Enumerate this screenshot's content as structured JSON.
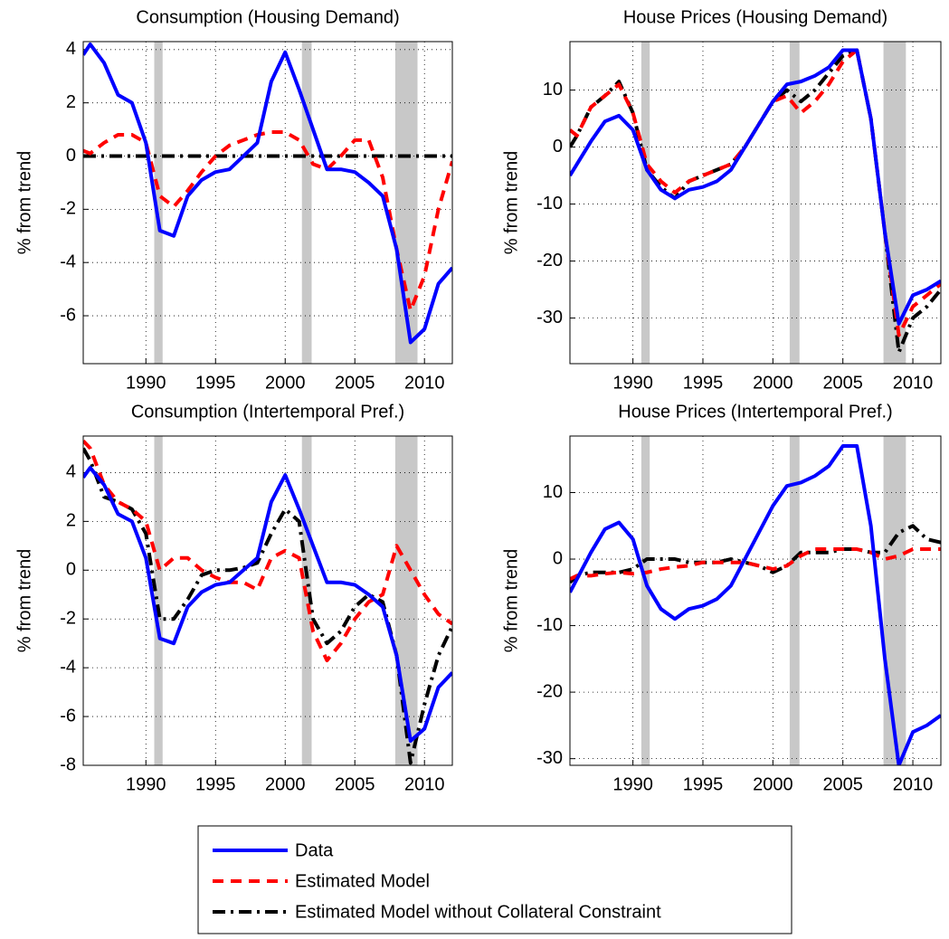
{
  "chart_data": [
    {
      "type": "line",
      "title": "Consumption (Housing Demand)",
      "ylabel": "% from trend",
      "x": [
        1985.5,
        1986,
        1987,
        1988,
        1989,
        1990,
        1991,
        1992,
        1993,
        1994,
        1995,
        1996,
        1997,
        1998,
        1999,
        2000,
        2001,
        2002,
        2003,
        2004,
        2005,
        2006,
        2007,
        2008,
        2009,
        2010,
        2011,
        2012
      ],
      "series": [
        {
          "name": "Data",
          "color": "#0000ff",
          "values": [
            3.8,
            4.2,
            3.5,
            2.3,
            2.0,
            0.5,
            -2.8,
            -3.0,
            -1.5,
            -0.9,
            -0.6,
            -0.5,
            0.0,
            0.5,
            2.8,
            3.9,
            2.5,
            1.0,
            -0.5,
            -0.5,
            -0.6,
            -1.0,
            -1.5,
            -3.5,
            -7.0,
            -6.5,
            -4.8,
            -4.2
          ]
        },
        {
          "name": "Estimated Model",
          "color": "#ff0000",
          "values": [
            0.2,
            0.1,
            0.5,
            0.8,
            0.8,
            0.5,
            -1.5,
            -1.9,
            -1.3,
            -0.6,
            0,
            0.4,
            0.6,
            0.8,
            0.9,
            0.9,
            0.6,
            -0.3,
            -0.5,
            0,
            0.6,
            0.6,
            -0.8,
            -3.5,
            -5.8,
            -4.5,
            -2.0,
            -0.2
          ]
        },
        {
          "name": "Estimated Model without Collateral Constraint",
          "color": "#000000",
          "values": [
            0,
            0,
            0,
            0,
            0,
            0,
            0,
            0,
            0,
            0,
            0,
            0,
            0,
            0,
            0,
            0,
            0,
            0,
            0,
            0,
            0,
            0,
            0,
            0,
            0,
            0,
            0,
            0
          ]
        }
      ],
      "recessions": [
        [
          1990.6,
          1991.2
        ],
        [
          2001.2,
          2001.9
        ],
        [
          2007.9,
          2009.5
        ]
      ],
      "xlim": [
        1985.5,
        2012
      ],
      "xticks": [
        1990,
        1995,
        2000,
        2005,
        2010
      ],
      "ylim": [
        -7.8,
        4.3
      ],
      "yticks": [
        -6,
        -4,
        -2,
        0,
        2,
        4
      ],
      "grid": true
    },
    {
      "type": "line",
      "title": "House Prices (Housing Demand)",
      "ylabel": "% from trend",
      "x": [
        1985.5,
        1986,
        1987,
        1988,
        1989,
        1990,
        1991,
        1992,
        1993,
        1994,
        1995,
        1996,
        1997,
        1998,
        1999,
        2000,
        2001,
        2002,
        2003,
        2004,
        2005,
        2006,
        2007,
        2008,
        2009,
        2010,
        2011,
        2012
      ],
      "series": [
        {
          "name": "Data",
          "color": "#0000ff",
          "values": [
            -5,
            -3,
            1,
            4.5,
            5.5,
            3,
            -4,
            -7.5,
            -9,
            -7.5,
            -7,
            -6,
            -4,
            0,
            4,
            8,
            11,
            11.5,
            12.5,
            14,
            17,
            17,
            5,
            -15,
            -31,
            -26,
            -25,
            -23.5
          ]
        },
        {
          "name": "Estimated Model",
          "color": "#ff0000",
          "values": [
            3,
            2,
            7,
            9,
            11,
            6,
            -3,
            -6,
            -8,
            -6,
            -5,
            -4,
            -3,
            0,
            4,
            8,
            9,
            6,
            8,
            11,
            15,
            17,
            5,
            -15,
            -33,
            -28,
            -26,
            -24
          ]
        },
        {
          "name": "Estimated Model without Collateral Constraint",
          "color": "#000000",
          "values": [
            0,
            2,
            7,
            9,
            11.5,
            6,
            -4,
            -7,
            -9,
            -6,
            -5,
            -4,
            -3,
            0,
            4,
            8,
            10,
            8,
            10,
            13,
            16,
            17,
            5,
            -15,
            -36,
            -30,
            -28,
            -25
          ]
        }
      ],
      "recessions": [
        [
          1990.6,
          1991.2
        ],
        [
          2001.2,
          2001.9
        ],
        [
          2007.9,
          2009.5
        ]
      ],
      "xlim": [
        1985.5,
        2012
      ],
      "xticks": [
        1990,
        1995,
        2000,
        2005,
        2010
      ],
      "ylim": [
        -38,
        18.5
      ],
      "yticks": [
        -30,
        -20,
        -10,
        0,
        10
      ],
      "grid": true
    },
    {
      "type": "line",
      "title": "Consumption (Intertemporal Pref.)",
      "ylabel": "% from trend",
      "x": [
        1985.5,
        1986,
        1987,
        1988,
        1989,
        1990,
        1991,
        1992,
        1993,
        1994,
        1995,
        1996,
        1997,
        1998,
        1999,
        2000,
        2001,
        2002,
        2003,
        2004,
        2005,
        2006,
        2007,
        2008,
        2009,
        2010,
        2011,
        2012
      ],
      "series": [
        {
          "name": "Data",
          "color": "#0000ff",
          "values": [
            3.8,
            4.2,
            3.5,
            2.3,
            2.0,
            0.5,
            -2.8,
            -3.0,
            -1.5,
            -0.9,
            -0.6,
            -0.5,
            0.0,
            0.5,
            2.8,
            3.9,
            2.5,
            1.0,
            -0.5,
            -0.5,
            -0.6,
            -1.0,
            -1.5,
            -3.5,
            -7.0,
            -6.5,
            -4.8,
            -4.2
          ]
        },
        {
          "name": "Estimated Model",
          "color": "#ff0000",
          "values": [
            5.3,
            5.0,
            3.5,
            2.8,
            2.5,
            2.0,
            0,
            0.5,
            0.5,
            0,
            -0.3,
            -0.5,
            -0.5,
            -0.8,
            0.5,
            0.8,
            0.5,
            -2.5,
            -3.7,
            -3.0,
            -2.0,
            -1.3,
            -1.0,
            1.0,
            0.0,
            -1.0,
            -1.8,
            -2.2
          ]
        },
        {
          "name": "Estimated Model without Collateral Constraint",
          "color": "#000000",
          "values": [
            5.0,
            4.5,
            3.0,
            2.8,
            2.5,
            1.5,
            -2.0,
            -2.0,
            -1.2,
            -0.2,
            0,
            0,
            0.1,
            0.3,
            1.5,
            2.5,
            2.0,
            -2.0,
            -3.0,
            -2.5,
            -1.5,
            -1.0,
            -1.3,
            -3.5,
            -7.9,
            -5.5,
            -3.5,
            -2.3
          ]
        }
      ],
      "recessions": [
        [
          1990.6,
          1991.2
        ],
        [
          2001.2,
          2001.9
        ],
        [
          2007.9,
          2009.5
        ]
      ],
      "xlim": [
        1985.5,
        2012
      ],
      "xticks": [
        1990,
        1995,
        2000,
        2005,
        2010
      ],
      "ylim": [
        -8,
        5.5
      ],
      "yticks": [
        -8,
        -6,
        -4,
        -2,
        0,
        2,
        4
      ],
      "grid": true
    },
    {
      "type": "line",
      "title": "House Prices (Intertemporal Pref.)",
      "ylabel": "% from trend",
      "x": [
        1985.5,
        1986,
        1987,
        1988,
        1989,
        1990,
        1991,
        1992,
        1993,
        1994,
        1995,
        1996,
        1997,
        1998,
        1999,
        2000,
        2001,
        2002,
        2003,
        2004,
        2005,
        2006,
        2007,
        2008,
        2009,
        2010,
        2011,
        2012
      ],
      "series": [
        {
          "name": "Data",
          "color": "#0000ff",
          "values": [
            -5,
            -3,
            1,
            4.5,
            5.5,
            3,
            -4,
            -7.5,
            -9,
            -7.5,
            -7,
            -6,
            -4,
            0,
            4,
            8,
            11,
            11.5,
            12.5,
            14,
            17,
            17,
            5,
            -15,
            -31,
            -26,
            -25,
            -23.5
          ]
        },
        {
          "name": "Estimated Model",
          "color": "#ff0000",
          "values": [
            -3,
            -2.5,
            -2.5,
            -2.2,
            -2.0,
            -2.2,
            -2.0,
            -1.5,
            -1.2,
            -1.0,
            -0.5,
            -0.5,
            -0.5,
            -0.5,
            -1,
            -1.5,
            -1,
            0.5,
            1.5,
            1.5,
            1.5,
            1.5,
            1,
            0,
            0.5,
            1.5,
            1.5,
            1.5
          ]
        },
        {
          "name": "Estimated Model without Collateral Constraint",
          "color": "#000000",
          "values": [
            -3.5,
            -2.5,
            -2,
            -2,
            -2,
            -1.5,
            0,
            0,
            0,
            -0.5,
            -0.5,
            -0.5,
            0,
            -0.5,
            -1,
            -2,
            -1,
            1,
            1,
            1,
            1.5,
            1.5,
            1,
            1,
            4,
            5,
            3,
            2.5
          ]
        }
      ],
      "recessions": [
        [
          1990.6,
          1991.2
        ],
        [
          2001.2,
          2001.9
        ],
        [
          2007.9,
          2009.5
        ]
      ],
      "xlim": [
        1985.5,
        2012
      ],
      "xticks": [
        1990,
        1995,
        2000,
        2005,
        2010
      ],
      "ylim": [
        -31,
        18.5
      ],
      "yticks": [
        -30,
        -20,
        -10,
        0,
        10
      ],
      "grid": true
    }
  ]
}
